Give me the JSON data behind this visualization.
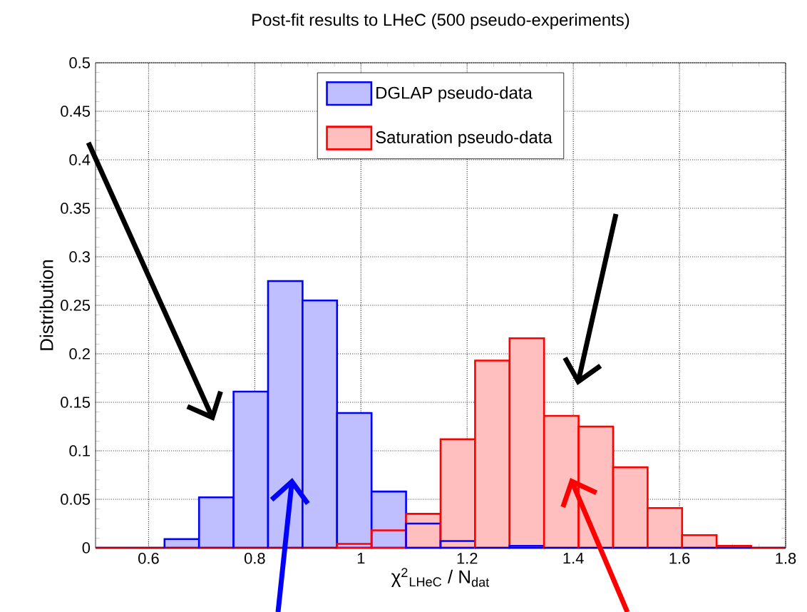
{
  "chart_data": {
    "type": "histogram",
    "title": "Post-fit results to LHeC (500 pseudo-experiments)",
    "xlabel": "χ$^{2}$$_{LHeC}$ / N$_{dat}$",
    "ylabel": "Distribution",
    "bins": [
      0.5,
      0.565,
      0.63,
      0.695,
      0.76,
      0.825,
      0.89,
      0.955,
      1.02,
      1.085,
      1.15,
      1.215,
      1.28,
      1.345,
      1.41,
      1.475,
      1.54,
      1.605,
      1.67,
      1.735,
      1.8
    ],
    "series": [
      {
        "name": "DGLAP pseudo-data",
        "color": "#0000ff",
        "values": [
          0,
          0,
          0.009,
          0.052,
          0.161,
          0.275,
          0.255,
          0.139,
          0.058,
          0.025,
          0.007,
          0,
          0.002,
          0,
          0,
          0,
          0,
          0,
          0,
          0
        ]
      },
      {
        "name": "Saturation pseudo-data",
        "color": "#ff0000",
        "values": [
          0,
          0,
          0,
          0,
          0,
          0,
          0,
          0.004,
          0.018,
          0.035,
          0.112,
          0.193,
          0.216,
          0.136,
          0.125,
          0.083,
          0.041,
          0.013,
          0.002,
          0
        ]
      }
    ],
    "xlim": [
      0.5,
      1.8
    ],
    "ylim": [
      0,
      0.5
    ],
    "xticks": [
      0.6,
      0.8,
      1,
      1.2,
      1.4,
      1.6,
      1.8
    ],
    "yticks": [
      0,
      0.05,
      0.1,
      0.15,
      0.2,
      0.25,
      0.3,
      0.35,
      0.4,
      0.45,
      0.5
    ],
    "grid": true,
    "legend": "top"
  }
}
